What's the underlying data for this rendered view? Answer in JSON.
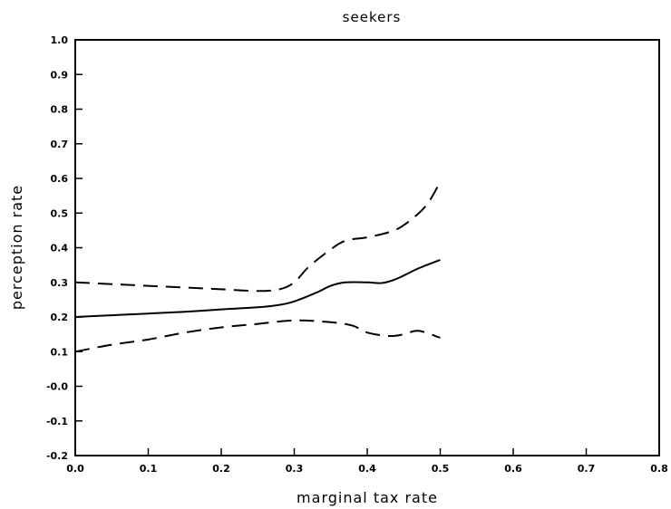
{
  "chart_data": {
    "type": "line",
    "title": "seekers",
    "xlabel": "marginal tax rate",
    "ylabel": "perception rate",
    "xlim": [
      0.0,
      0.8
    ],
    "ylim": [
      -0.2,
      1.0
    ],
    "x_ticks": [
      "0.0",
      "0.1",
      "0.2",
      "0.3",
      "0.4",
      "0.5",
      "0.6",
      "0.7",
      "0.8"
    ],
    "y_ticks": [
      "-0.2",
      "-0.1",
      "-0.0",
      "0.1",
      "0.2",
      "0.3",
      "0.4",
      "0.5",
      "0.6",
      "0.7",
      "0.8",
      "0.9",
      "1.0"
    ],
    "grid": false,
    "series": [
      {
        "style": "solid",
        "x": [
          0.0,
          0.05,
          0.1,
          0.15,
          0.2,
          0.25,
          0.28,
          0.3,
          0.33,
          0.35,
          0.37,
          0.4,
          0.42,
          0.44,
          0.47,
          0.5
        ],
        "y": [
          0.2,
          0.205,
          0.21,
          0.215,
          0.222,
          0.228,
          0.235,
          0.245,
          0.27,
          0.29,
          0.3,
          0.3,
          0.298,
          0.31,
          0.34,
          0.365
        ]
      },
      {
        "style": "dashed",
        "x": [
          0.0,
          0.05,
          0.1,
          0.15,
          0.2,
          0.25,
          0.28,
          0.3,
          0.32,
          0.35,
          0.37,
          0.4,
          0.43,
          0.45,
          0.48,
          0.5
        ],
        "y": [
          0.3,
          0.295,
          0.29,
          0.285,
          0.28,
          0.275,
          0.28,
          0.3,
          0.345,
          0.395,
          0.42,
          0.43,
          0.445,
          0.465,
          0.52,
          0.59
        ]
      },
      {
        "style": "dashed",
        "x": [
          0.0,
          0.05,
          0.1,
          0.15,
          0.2,
          0.25,
          0.3,
          0.35,
          0.38,
          0.4,
          0.43,
          0.45,
          0.47,
          0.5
        ],
        "y": [
          0.1,
          0.12,
          0.135,
          0.155,
          0.17,
          0.18,
          0.19,
          0.185,
          0.175,
          0.155,
          0.145,
          0.15,
          0.16,
          0.14
        ]
      }
    ]
  }
}
